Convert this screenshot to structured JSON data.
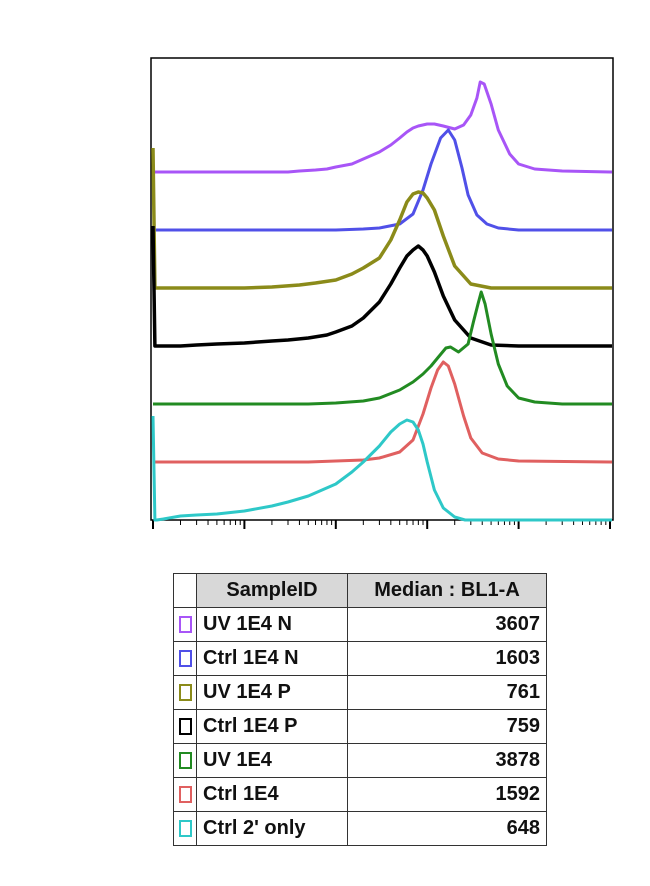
{
  "chart_data": {
    "type": "line",
    "title": "",
    "xlabel": "",
    "ylabel": "",
    "x_scale": "log",
    "xlim": [
      1,
      100000
    ],
    "grid": false,
    "series": [
      {
        "name": "UV 1E4 N",
        "color": "#a855f7",
        "x": [
          1,
          5,
          10,
          20,
          30,
          40,
          60,
          80,
          100,
          150,
          200,
          300,
          400,
          500,
          600,
          700,
          800,
          1000,
          1200,
          1500,
          2000,
          2500,
          3000,
          3500,
          3800,
          4200,
          5000,
          6000,
          8000,
          10000,
          15000,
          30000,
          100000
        ],
        "y": [
          0,
          0,
          0,
          0,
          0,
          1,
          2,
          3,
          5,
          8,
          13,
          20,
          27,
          34,
          40,
          44,
          46,
          48,
          48,
          46,
          43,
          47,
          57,
          74,
          90,
          88,
          68,
          42,
          18,
          8,
          3,
          1,
          0
        ]
      },
      {
        "name": "Ctrl 1E4 N",
        "color": "#5050e8",
        "x": [
          1,
          10,
          100,
          200,
          300,
          500,
          700,
          900,
          1100,
          1400,
          1700,
          2000,
          2400,
          2800,
          3500,
          4500,
          6000,
          10000,
          100000
        ],
        "y": [
          0,
          0,
          0,
          1,
          2,
          6,
          16,
          40,
          66,
          92,
          100,
          90,
          62,
          35,
          15,
          6,
          2,
          0,
          0
        ]
      },
      {
        "name": "UV 1E4 P",
        "color": "#8b8b1a",
        "x": [
          1,
          1.05,
          1.1,
          1.3,
          2,
          5,
          10,
          20,
          40,
          60,
          100,
          150,
          200,
          300,
          400,
          500,
          600,
          700,
          800,
          900,
          1000,
          1200,
          1500,
          2000,
          3000,
          5000,
          100000
        ],
        "y": [
          140,
          0,
          0,
          0,
          0,
          0,
          0,
          1,
          3,
          5,
          8,
          14,
          20,
          30,
          48,
          68,
          86,
          94,
          96,
          95,
          90,
          78,
          52,
          22,
          4,
          0,
          0
        ]
      },
      {
        "name": "Ctrl 1E4 P",
        "color": "#000000",
        "x": [
          1,
          1.05,
          1.1,
          1.3,
          2,
          3,
          5,
          10,
          20,
          30,
          50,
          80,
          100,
          150,
          200,
          300,
          400,
          500,
          600,
          700,
          800,
          900,
          1000,
          1200,
          1500,
          2000,
          3000,
          5000,
          10000,
          100000
        ],
        "y": [
          120,
          0,
          0,
          0,
          0,
          1,
          2,
          3,
          5,
          6,
          8,
          11,
          14,
          20,
          28,
          44,
          62,
          78,
          90,
          96,
          100,
          96,
          90,
          74,
          50,
          26,
          8,
          1,
          0,
          0
        ]
      },
      {
        "name": "UV 1E4",
        "color": "#228b22",
        "x": [
          1,
          10,
          50,
          100,
          200,
          300,
          500,
          700,
          900,
          1100,
          1300,
          1600,
          1800,
          2200,
          2800,
          3200,
          3600,
          3900,
          4300,
          5000,
          6000,
          7500,
          10000,
          15000,
          30000,
          100000
        ],
        "y": [
          0,
          0,
          0,
          1,
          3,
          6,
          14,
          22,
          30,
          38,
          46,
          56,
          57,
          52,
          60,
          82,
          100,
          112,
          100,
          70,
          40,
          18,
          6,
          2,
          0,
          0
        ]
      },
      {
        "name": "Ctrl 1E4",
        "color": "#e06060",
        "x": [
          1,
          10,
          50,
          100,
          200,
          300,
          500,
          700,
          900,
          1100,
          1300,
          1500,
          1700,
          2000,
          2500,
          3000,
          4000,
          6000,
          10000,
          100000
        ],
        "y": [
          0,
          0,
          0,
          1,
          2,
          4,
          10,
          22,
          48,
          74,
          92,
          100,
          96,
          78,
          46,
          24,
          9,
          3,
          1,
          0
        ]
      },
      {
        "name": "Ctrl 2' only",
        "color": "#2ec8c8",
        "x": [
          1,
          1.05,
          1.1,
          1.3,
          2,
          3,
          5,
          10,
          20,
          30,
          50,
          100,
          150,
          200,
          300,
          400,
          500,
          600,
          700,
          800,
          900,
          1000,
          1200,
          1500,
          2000,
          2600,
          100000
        ],
        "y": [
          104,
          0,
          0,
          1,
          4,
          5,
          6,
          9,
          14,
          18,
          24,
          36,
          48,
          58,
          74,
          88,
          96,
          100,
          98,
          90,
          76,
          58,
          30,
          12,
          3,
          0,
          0
        ]
      }
    ],
    "legend": {
      "headers": [
        "SampleID",
        "Median : BL1-A"
      ],
      "rows": [
        {
          "name": "UV 1E4 N",
          "value": "3607",
          "color": "#a855f7"
        },
        {
          "name": "Ctrl 1E4 N",
          "value": "1603",
          "color": "#5050e8"
        },
        {
          "name": "UV 1E4 P",
          "value": "761",
          "color": "#8b8b1a"
        },
        {
          "name": "Ctrl 1E4 P",
          "value": "759",
          "color": "#000000"
        },
        {
          "name": "UV 1E4",
          "value": "3878",
          "color": "#228b22"
        },
        {
          "name": "Ctrl 1E4",
          "value": "1592",
          "color": "#e06060"
        },
        {
          "name": "Ctrl 2' only",
          "value": "648",
          "color": "#2ec8c8"
        }
      ]
    }
  }
}
